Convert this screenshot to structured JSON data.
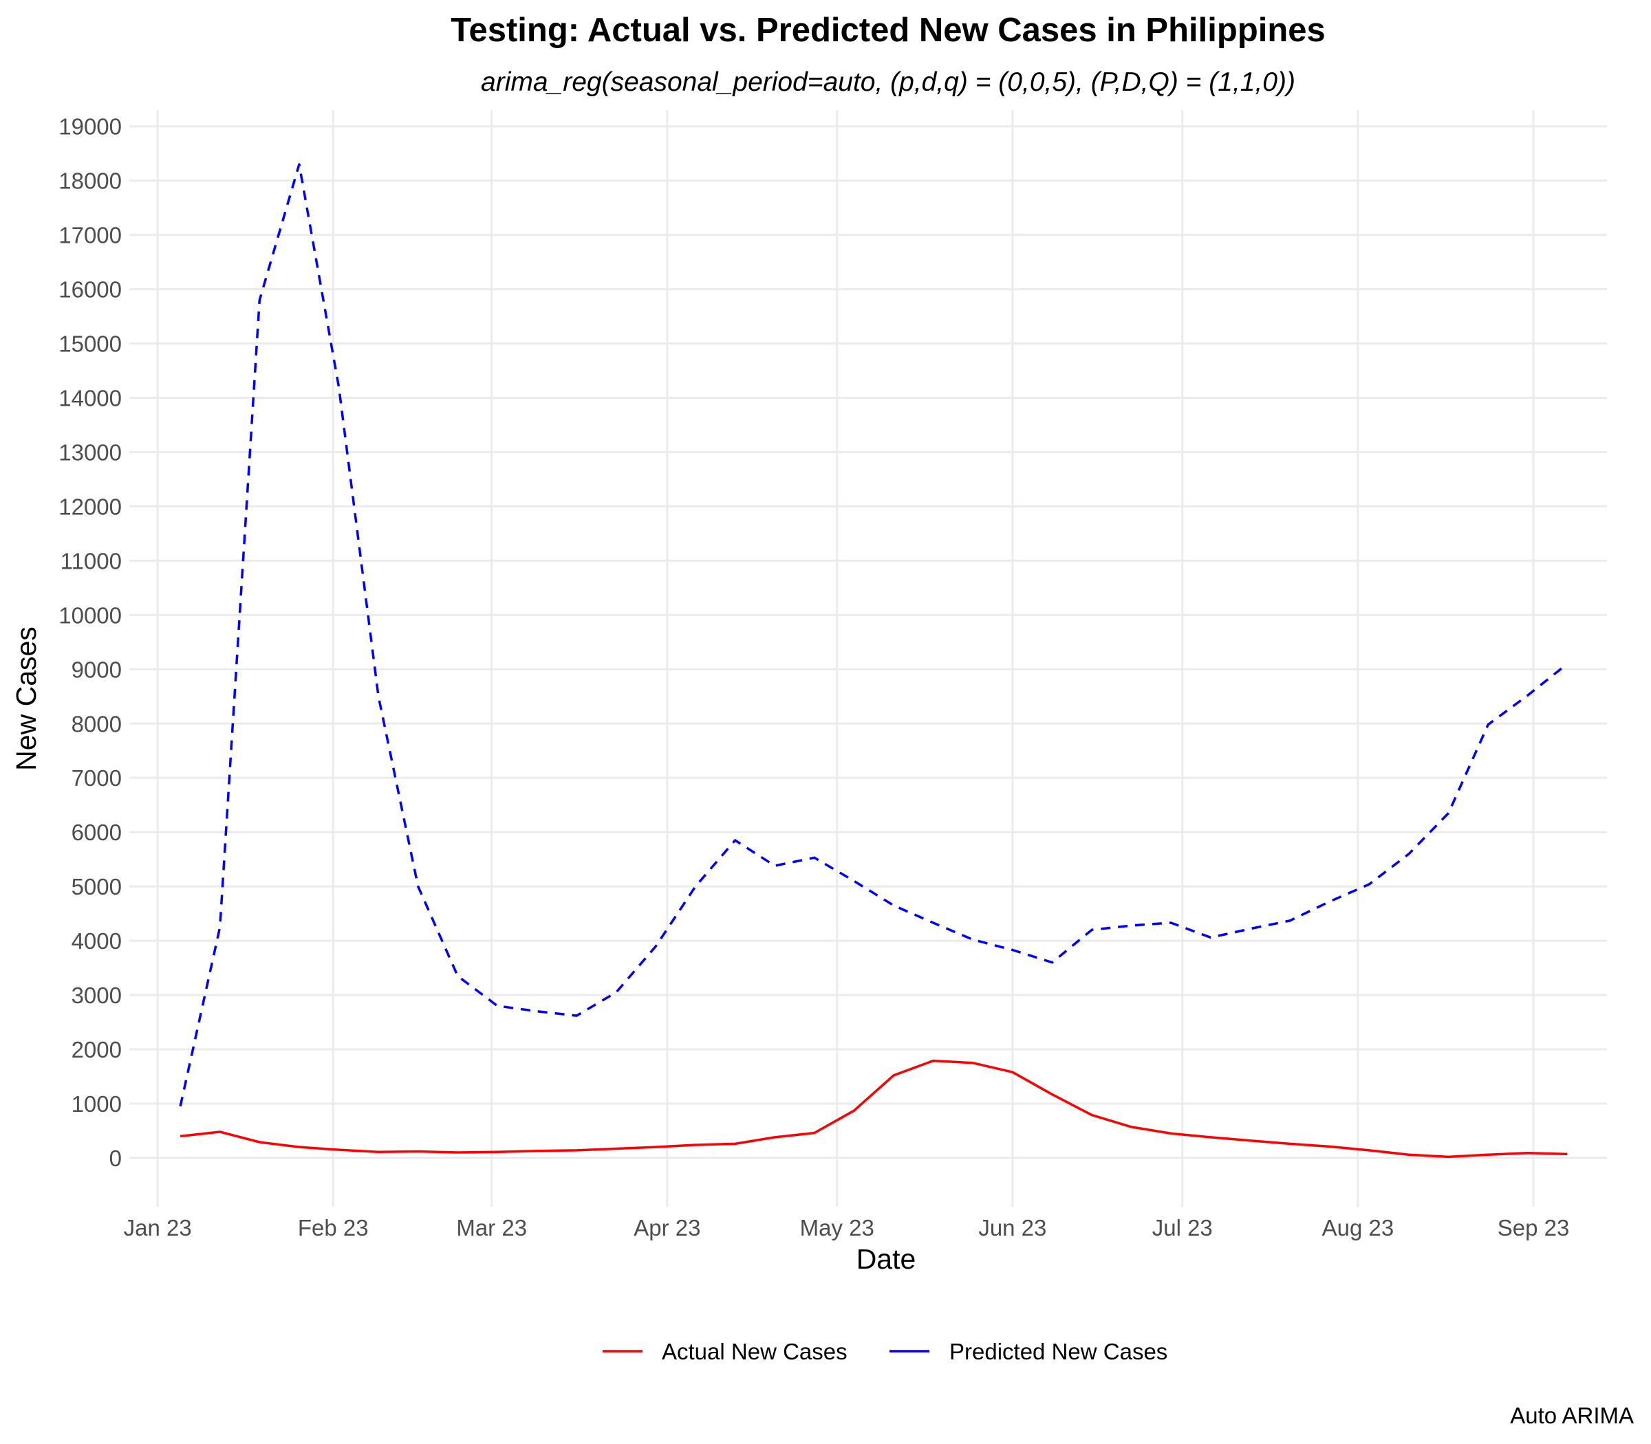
{
  "chart_data": {
    "type": "line",
    "title": "Testing: Actual vs. Predicted New Cases in Philippines",
    "subtitle": "arima_reg(seasonal_period=auto, (p,d,q) = (0,0,5), (P,D,Q) = (1,1,0))",
    "xlabel": "Date",
    "ylabel": "New Cases",
    "caption": "Auto ARIMA",
    "grid": true,
    "legend_position": "bottom",
    "ylim": [
      -900,
      19300
    ],
    "yticks": [
      0,
      1000,
      2000,
      3000,
      4000,
      5000,
      6000,
      7000,
      8000,
      9000,
      10000,
      11000,
      12000,
      13000,
      14000,
      15000,
      16000,
      17000,
      18000,
      19000
    ],
    "xlim": [
      "2022-12-27",
      "2023-09-14"
    ],
    "xticks": [
      {
        "date": "2023-01-01",
        "label": "Jan 23"
      },
      {
        "date": "2023-02-01",
        "label": "Feb 23"
      },
      {
        "date": "2023-03-01",
        "label": "Mar 23"
      },
      {
        "date": "2023-04-01",
        "label": "Apr 23"
      },
      {
        "date": "2023-05-01",
        "label": "May 23"
      },
      {
        "date": "2023-06-01",
        "label": "Jun 23"
      },
      {
        "date": "2023-07-01",
        "label": "Jul 23"
      },
      {
        "date": "2023-08-01",
        "label": "Aug 23"
      },
      {
        "date": "2023-09-01",
        "label": "Sep 23"
      }
    ],
    "x": [
      "2023-01-05",
      "2023-01-12",
      "2023-01-19",
      "2023-01-26",
      "2023-02-02",
      "2023-02-09",
      "2023-02-16",
      "2023-02-23",
      "2023-03-02",
      "2023-03-09",
      "2023-03-16",
      "2023-03-23",
      "2023-03-30",
      "2023-04-06",
      "2023-04-13",
      "2023-04-20",
      "2023-04-27",
      "2023-05-04",
      "2023-05-11",
      "2023-05-18",
      "2023-05-25",
      "2023-06-01",
      "2023-06-08",
      "2023-06-15",
      "2023-06-22",
      "2023-06-29",
      "2023-07-06",
      "2023-07-13",
      "2023-07-20",
      "2023-07-27",
      "2023-08-03",
      "2023-08-10",
      "2023-08-17",
      "2023-08-24",
      "2023-08-31",
      "2023-09-07"
    ],
    "series": [
      {
        "name": "Actual New Cases",
        "color": "#ff0000",
        "dash": "solid",
        "values": [
          400,
          480,
          290,
          200,
          150,
          110,
          120,
          100,
          110,
          130,
          140,
          170,
          200,
          240,
          260,
          380,
          460,
          870,
          1520,
          1790,
          1750,
          1580,
          1170,
          790,
          570,
          450,
          380,
          320,
          260,
          210,
          140,
          60,
          20,
          60,
          90,
          70
        ]
      },
      {
        "name": "Predicted New Cases",
        "color": "#0000ff",
        "dash": "dashed",
        "values": [
          950,
          4250,
          15800,
          18300,
          14200,
          8500,
          5000,
          3350,
          2800,
          2700,
          2620,
          3050,
          3900,
          5000,
          5850,
          5380,
          5530,
          5100,
          4650,
          4330,
          4020,
          3830,
          3600,
          4200,
          4280,
          4330,
          4060,
          4220,
          4370,
          4720,
          5040,
          5600,
          6350,
          7980,
          8520,
          9100
        ]
      }
    ]
  }
}
